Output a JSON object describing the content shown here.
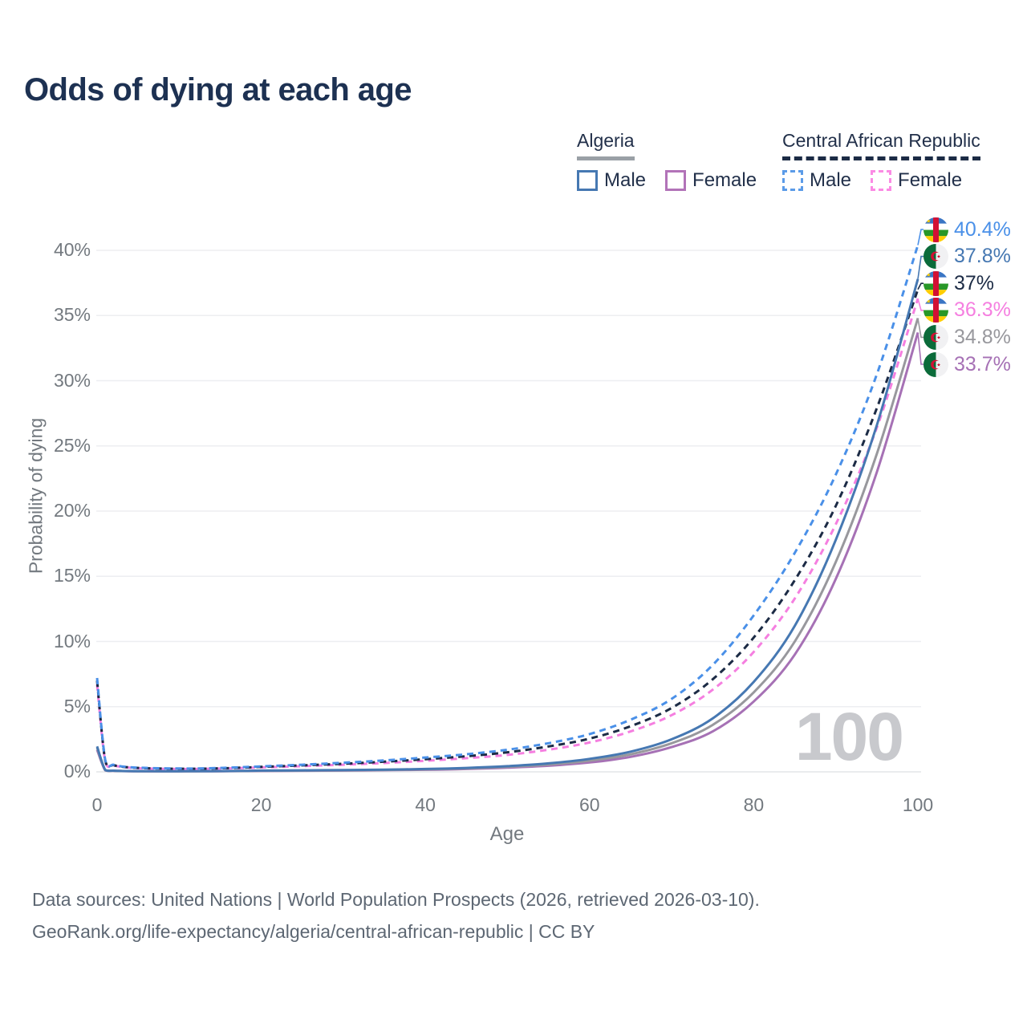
{
  "title": "Odds of dying at each age",
  "watermark": "100",
  "legend": {
    "groups": [
      {
        "country": "Algeria",
        "line_style": "solid",
        "underline_color": "#9aa0a6",
        "items": [
          {
            "label": "Male",
            "color": "#4678b2"
          },
          {
            "label": "Female",
            "color": "#b273b8"
          }
        ]
      },
      {
        "country": "Central African Republic",
        "line_style": "dashed",
        "underline_color": "#1c2b45",
        "items": [
          {
            "label": "Male",
            "color": "#5b9be8"
          },
          {
            "label": "Female",
            "color": "#fb8ae4"
          }
        ]
      }
    ]
  },
  "footer": {
    "line1": "Data sources: United Nations | World Population Prospects (2026, retrieved 2026-03-10).",
    "line2": "GeoRank.org/life-expectancy/algeria/central-african-republic | CC BY"
  },
  "chart_data": {
    "type": "line",
    "title": "Odds of dying at each age",
    "xlabel": "Age",
    "ylabel": "Probability of dying",
    "xlim": [
      0,
      100
    ],
    "ylim": [
      0,
      42
    ],
    "xticks": [
      0,
      20,
      40,
      60,
      80,
      100
    ],
    "yticks": [
      "0%",
      "5%",
      "10%",
      "15%",
      "20%",
      "25%",
      "30%",
      "35%",
      "40%"
    ],
    "ytick_values": [
      0,
      5,
      10,
      15,
      20,
      25,
      30,
      35,
      40
    ],
    "grid": true,
    "legend_position": "top-right",
    "x": [
      0,
      1,
      2,
      3,
      4,
      5,
      8,
      10,
      12,
      15,
      18,
      20,
      25,
      30,
      35,
      40,
      45,
      50,
      55,
      60,
      65,
      70,
      75,
      80,
      85,
      90,
      95,
      100
    ],
    "series": [
      {
        "id": "car-male",
        "name": "Central African Republic Male",
        "country": "Central African Republic",
        "sex": "Male",
        "flag": "car",
        "color": "#4a90e8",
        "dash": true,
        "end_label": "40.4%",
        "end_value": 40.4,
        "values": [
          7.2,
          0.9,
          0.55,
          0.42,
          0.36,
          0.32,
          0.27,
          0.26,
          0.26,
          0.3,
          0.37,
          0.42,
          0.55,
          0.7,
          0.88,
          1.1,
          1.35,
          1.7,
          2.2,
          2.9,
          4.0,
          5.6,
          8.2,
          12.0,
          16.8,
          22.8,
          30.5,
          40.4
        ]
      },
      {
        "id": "algeria-male",
        "name": "Algeria Male",
        "country": "Algeria",
        "sex": "Male",
        "flag": "algeria",
        "color": "#4678b2",
        "dash": false,
        "end_label": "37.8%",
        "end_value": 37.8,
        "values": [
          1.95,
          0.14,
          0.09,
          0.07,
          0.06,
          0.055,
          0.05,
          0.05,
          0.055,
          0.06,
          0.08,
          0.1,
          0.12,
          0.14,
          0.17,
          0.22,
          0.3,
          0.44,
          0.65,
          1.0,
          1.55,
          2.5,
          4.1,
          6.9,
          11.2,
          17.8,
          26.6,
          37.8
        ]
      },
      {
        "id": "car-total",
        "name": "Central African Republic",
        "country": "Central African Republic",
        "sex": "Both",
        "flag": "car",
        "color": "#1c2b45",
        "dash": true,
        "end_label": "37%",
        "end_value": 37.0,
        "values": [
          7.0,
          0.85,
          0.52,
          0.4,
          0.34,
          0.3,
          0.25,
          0.24,
          0.24,
          0.27,
          0.33,
          0.38,
          0.5,
          0.62,
          0.78,
          0.97,
          1.2,
          1.5,
          1.95,
          2.55,
          3.5,
          4.9,
          7.1,
          10.3,
          14.7,
          20.4,
          27.9,
          37.0
        ]
      },
      {
        "id": "car-female",
        "name": "Central African Republic Female",
        "country": "Central African Republic",
        "sex": "Female",
        "flag": "car",
        "color": "#f57fe0",
        "dash": true,
        "end_label": "36.3%",
        "end_value": 36.3,
        "values": [
          6.7,
          0.8,
          0.5,
          0.38,
          0.32,
          0.28,
          0.23,
          0.22,
          0.22,
          0.25,
          0.3,
          0.34,
          0.44,
          0.55,
          0.68,
          0.85,
          1.05,
          1.3,
          1.7,
          2.25,
          3.1,
          4.35,
          6.3,
          9.2,
          13.3,
          19.0,
          26.4,
          36.3
        ]
      },
      {
        "id": "algeria-total",
        "name": "Algeria",
        "country": "Algeria",
        "sex": "Both",
        "flag": "algeria",
        "color": "#98989d",
        "dash": false,
        "end_label": "34.8%",
        "end_value": 34.8,
        "values": [
          1.85,
          0.13,
          0.085,
          0.065,
          0.057,
          0.05,
          0.046,
          0.045,
          0.05,
          0.055,
          0.07,
          0.085,
          0.1,
          0.12,
          0.15,
          0.19,
          0.26,
          0.38,
          0.56,
          0.86,
          1.35,
          2.2,
          3.6,
          6.1,
          10.0,
          16.1,
          24.4,
          34.8
        ]
      },
      {
        "id": "algeria-female",
        "name": "Algeria Female",
        "country": "Algeria",
        "sex": "Female",
        "flag": "algeria",
        "color": "#a671b5",
        "dash": false,
        "end_label": "33.7%",
        "end_value": 33.7,
        "values": [
          1.7,
          0.12,
          0.08,
          0.06,
          0.05,
          0.045,
          0.04,
          0.04,
          0.045,
          0.05,
          0.06,
          0.07,
          0.085,
          0.1,
          0.13,
          0.16,
          0.22,
          0.32,
          0.47,
          0.72,
          1.15,
          1.9,
          3.1,
          5.4,
          9.0,
          14.8,
          23.0,
          33.7
        ]
      }
    ]
  }
}
